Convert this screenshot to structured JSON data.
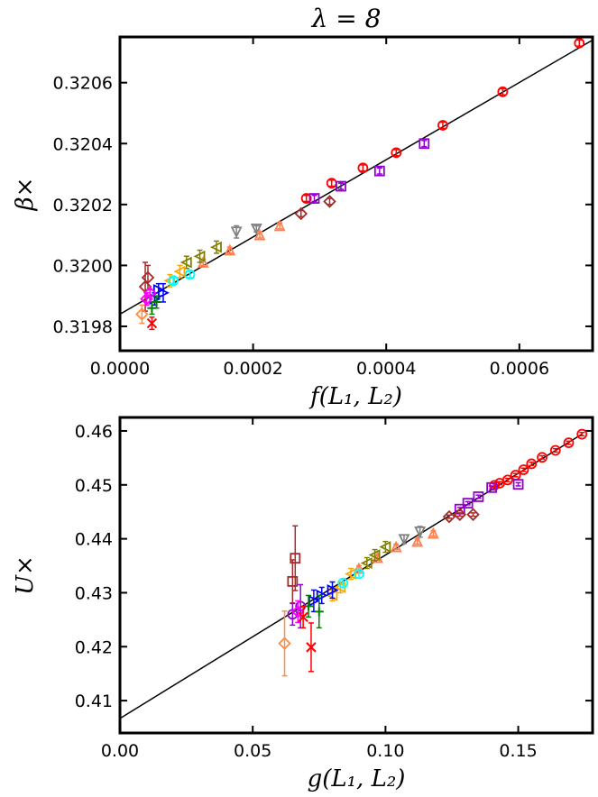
{
  "title": "λ = 8",
  "colors": {
    "fit_line": "#000000",
    "series": [
      "#ff0000",
      "#9400d3",
      "#a52a2a",
      "#808080",
      "#ff7f50",
      "#808000",
      "#ffa500",
      "#00ffff",
      "#0000ff",
      "#008000",
      "#ff00ff",
      "#ff4500"
    ]
  },
  "chart_data": [
    {
      "type": "scatter",
      "name": "beta",
      "title": "λ = 8",
      "xlabel": "f(L₁, L₂)",
      "ylabel": "β×",
      "xlim": [
        0.0,
        0.00071
      ],
      "ylim": [
        0.31972,
        0.32075
      ],
      "xticks": [
        0.0,
        0.0002,
        0.0004,
        0.0006
      ],
      "xtick_labels": [
        "0.0000",
        "0.0002",
        "0.0004",
        "0.0006"
      ],
      "yticks": [
        0.3198,
        0.32,
        0.3202,
        0.3204,
        0.3206
      ],
      "ytick_labels": [
        "0.3198",
        "0.3200",
        "0.3202",
        "0.3204",
        "0.3206"
      ],
      "fit": {
        "x": [
          0.0,
          0.00071
        ],
        "y": [
          0.31984,
          0.32074
        ]
      },
      "series": [
        {
          "name": "red circles",
          "marker": "circle",
          "color": "#ff0000",
          "points": [
            [
              0.00069,
              0.32073,
              1e-05
            ],
            [
              0.000575,
              0.32057,
              1e-05
            ],
            [
              0.000485,
              0.32046,
              1e-05
            ],
            [
              0.000415,
              0.32037,
              1e-05
            ],
            [
              0.000365,
              0.32032,
              1e-05
            ],
            [
              0.000318,
              0.32027,
              1e-05
            ],
            [
              0.00028,
              0.32022,
              1e-05
            ]
          ]
        },
        {
          "name": "purple squares",
          "marker": "square",
          "color": "#9400d3",
          "points": [
            [
              0.000457,
              0.3204,
              1e-05
            ],
            [
              0.00039,
              0.32031,
              1e-05
            ],
            [
              0.000332,
              0.32026,
              1e-05
            ],
            [
              0.000292,
              0.32022,
              1e-05
            ]
          ]
        },
        {
          "name": "brown diamonds",
          "marker": "diamond",
          "color": "#a52a2a",
          "points": [
            [
              0.000315,
              0.32021,
              1e-05
            ],
            [
              0.000272,
              0.32017,
              1e-05
            ],
            [
              3.8e-05,
              0.31993,
              8e-05
            ],
            [
              4.2e-05,
              0.31996,
              4e-05
            ]
          ]
        },
        {
          "name": "gray down-triangles",
          "marker": "tri-down",
          "color": "#808080",
          "points": [
            [
              0.000175,
              0.32011,
              2e-05
            ],
            [
              0.000205,
              0.32012,
              1e-05
            ]
          ]
        },
        {
          "name": "coral mix",
          "marker": "tri-up",
          "color": "#ff7f50",
          "points": [
            [
              0.00024,
              0.32013,
              1e-05
            ],
            [
              0.00021,
              0.3201,
              1e-05
            ],
            [
              0.000165,
              0.32005,
              1e-05
            ],
            [
              0.000125,
              0.32001,
              1e-05
            ]
          ]
        },
        {
          "name": "olive",
          "marker": "tri-left",
          "color": "#808000",
          "points": [
            [
              0.000145,
              0.32006,
              2e-05
            ],
            [
              0.00012,
              0.32003,
              2e-05
            ],
            [
              0.0001,
              0.32001,
              2e-05
            ]
          ]
        },
        {
          "name": "orange",
          "marker": "tri-left",
          "color": "#ffa500",
          "points": [
            [
              9e-05,
              0.31998,
              2e-05
            ],
            [
              7.5e-05,
              0.31995,
              2e-05
            ]
          ]
        },
        {
          "name": "cyan",
          "marker": "circle",
          "color": "#00ffff",
          "points": [
            [
              0.000105,
              0.31997,
              1e-05
            ],
            [
              8e-05,
              0.31995,
              1e-05
            ]
          ]
        },
        {
          "name": "blue",
          "marker": "tri-right",
          "color": "#0000ff",
          "points": [
            [
              6.5e-05,
              0.31991,
              3e-05
            ],
            [
              5.2e-05,
              0.31989,
              2e-05
            ],
            [
              5.8e-05,
              0.31992,
              2e-05
            ]
          ]
        },
        {
          "name": "green",
          "marker": "plus",
          "color": "#008000",
          "points": [
            [
              4.8e-05,
              0.31986,
              2e-05
            ],
            [
              5.5e-05,
              0.31988,
              2e-05
            ]
          ]
        },
        {
          "name": "magenta",
          "marker": "diamond",
          "color": "#ff00ff",
          "points": [
            [
              4e-05,
              0.31989,
              2e-05
            ],
            [
              4.5e-05,
              0.31991,
              1e-05
            ]
          ]
        },
        {
          "name": "red cross",
          "marker": "x",
          "color": "#ff0000",
          "points": [
            [
              4.8e-05,
              0.31981,
              2e-05
            ]
          ]
        },
        {
          "name": "light orange diamond",
          "marker": "diamond",
          "color": "#ff8c42",
          "points": [
            [
              3.3e-05,
              0.31984,
              3e-05
            ]
          ]
        }
      ]
    },
    {
      "type": "scatter",
      "name": "U",
      "title": "",
      "xlabel": "g(L₁, L₂)",
      "ylabel": "U×",
      "xlim": [
        0.0,
        0.178
      ],
      "ylim": [
        0.404,
        0.4625
      ],
      "xticks": [
        0.0,
        0.05,
        0.1,
        0.15
      ],
      "xtick_labels": [
        "0.00",
        "0.05",
        "0.10",
        "0.15"
      ],
      "yticks": [
        0.41,
        0.42,
        0.43,
        0.44,
        0.45,
        0.46
      ],
      "ytick_labels": [
        "0.41",
        "0.42",
        "0.43",
        "0.44",
        "0.45",
        "0.46"
      ],
      "fit": {
        "x": [
          0.0,
          0.174
        ],
        "y": [
          0.4067,
          0.4594
        ]
      },
      "series": [
        {
          "name": "red circles",
          "marker": "circle",
          "color": "#ff0000",
          "points": [
            [
              0.174,
              0.4594,
              0.0003
            ],
            [
              0.169,
              0.4578,
              0.0003
            ],
            [
              0.164,
              0.4564,
              0.0003
            ],
            [
              0.159,
              0.4551,
              0.0003
            ],
            [
              0.155,
              0.4539,
              0.0003
            ],
            [
              0.152,
              0.4528,
              0.0003
            ],
            [
              0.149,
              0.4518,
              0.0003
            ],
            [
              0.146,
              0.4509,
              0.0003
            ],
            [
              0.143,
              0.4503,
              0.0003
            ],
            [
              0.141,
              0.4499,
              0.0003
            ]
          ]
        },
        {
          "name": "purple squares",
          "marker": "square",
          "color": "#9400d3",
          "points": [
            [
              0.15,
              0.4501,
              0.0003
            ],
            [
              0.14,
              0.4495,
              0.0003
            ],
            [
              0.135,
              0.4478,
              0.0003
            ],
            [
              0.131,
              0.4466,
              0.0003
            ],
            [
              0.128,
              0.4455,
              0.0003
            ]
          ]
        },
        {
          "name": "brown diamonds",
          "marker": "diamond",
          "color": "#a52a2a",
          "points": [
            [
              0.133,
              0.4445,
              0.0003
            ],
            [
              0.128,
              0.4445,
              0.0003
            ],
            [
              0.124,
              0.4441,
              0.0003
            ]
          ]
        },
        {
          "name": "brown squares",
          "marker": "square",
          "color": "#a52a2a",
          "points": [
            [
              0.066,
              0.4364,
              0.006
            ],
            [
              0.065,
              0.4321,
              0.004
            ]
          ]
        },
        {
          "name": "gray",
          "marker": "tri-down",
          "color": "#808080",
          "points": [
            [
              0.113,
              0.4413,
              0.001
            ],
            [
              0.107,
              0.4399,
              0.0008
            ]
          ]
        },
        {
          "name": "coral",
          "marker": "tri-up",
          "color": "#ff7f50",
          "points": [
            [
              0.118,
              0.441,
              0.0005
            ],
            [
              0.112,
              0.4395,
              0.0005
            ],
            [
              0.104,
              0.4385,
              0.0005
            ],
            [
              0.097,
              0.4365,
              0.0005
            ],
            [
              0.09,
              0.4345,
              0.0005
            ]
          ]
        },
        {
          "name": "olive",
          "marker": "tri-left",
          "color": "#808000",
          "points": [
            [
              0.1,
              0.4385,
              0.001
            ],
            [
              0.096,
              0.437,
              0.001
            ],
            [
              0.093,
              0.4355,
              0.001
            ]
          ]
        },
        {
          "name": "orange",
          "marker": "tri-left",
          "color": "#ffa500",
          "points": [
            [
              0.087,
              0.4335,
              0.001
            ],
            [
              0.083,
              0.431,
              0.001
            ],
            [
              0.08,
              0.4295,
              0.001
            ]
          ]
        },
        {
          "name": "cyan",
          "marker": "circle",
          "color": "#00ffff",
          "points": [
            [
              0.09,
              0.4335,
              0.0008
            ],
            [
              0.084,
              0.4318,
              0.0008
            ]
          ]
        },
        {
          "name": "blue",
          "marker": "tri-right",
          "color": "#0000ff",
          "points": [
            [
              0.08,
              0.4305,
              0.0015
            ],
            [
              0.076,
              0.4295,
              0.0015
            ],
            [
              0.073,
              0.4285,
              0.002
            ]
          ]
        },
        {
          "name": "green",
          "marker": "plus",
          "color": "#008000",
          "points": [
            [
              0.075,
              0.4265,
              0.003
            ],
            [
              0.071,
              0.4275,
              0.002
            ]
          ]
        },
        {
          "name": "purple",
          "marker": "circle",
          "color": "#9400d3",
          "points": [
            [
              0.068,
              0.4275,
              0.004
            ],
            [
              0.065,
              0.426,
              0.002
            ]
          ]
        },
        {
          "name": "magenta",
          "marker": "diamond",
          "color": "#ff00ff",
          "points": [
            [
              0.067,
              0.4265,
              0.002
            ]
          ]
        },
        {
          "name": "red cross",
          "marker": "x",
          "color": "#ff0000",
          "points": [
            [
              0.072,
              0.4199,
              0.0045
            ],
            [
              0.069,
              0.4255,
              0.002
            ]
          ]
        },
        {
          "name": "light orange diamond",
          "marker": "diamond",
          "color": "#ff8c42",
          "points": [
            [
              0.062,
              0.4206,
              0.006
            ]
          ]
        }
      ]
    }
  ]
}
